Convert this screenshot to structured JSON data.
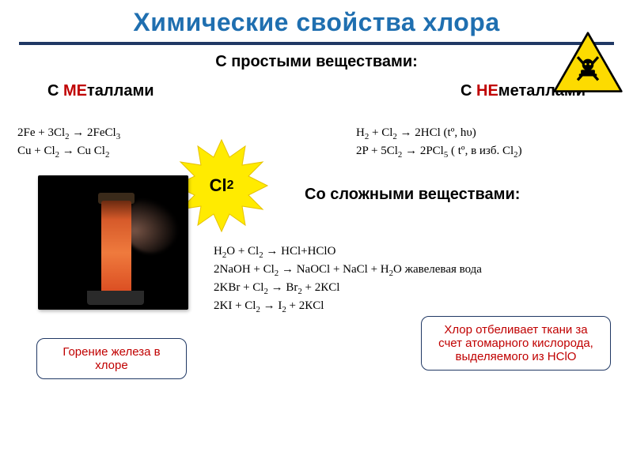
{
  "colors": {
    "title": "#1f6fb0",
    "underline": "#203864",
    "prefix": "#c00000",
    "callout_border": "#203864",
    "callout_text": "#c00000",
    "star_fill": "#ffeb00",
    "star_stroke": "#e6c200",
    "hazard_fill": "#fddb00",
    "hazard_stroke": "#000000"
  },
  "title": "Химические свойства хлора",
  "section_simple": "С простыми веществами:",
  "section_complex": "Со сложными веществами:",
  "cols": {
    "metals_prefix": "МЕ",
    "metals_rest": "таллами",
    "nonmetals_prefix": "НЕ",
    "nonmetals_rest": "металлами",
    "with": "С "
  },
  "eq_metals": [
    "2Fe + 3Cl<sub>2</sub>  →  2FeCl<sub>3</sub>",
    "Cu  +  Cl<sub>2</sub> → Cu Cl<sub>2</sub>"
  ],
  "eq_nonmetals": [
    "H<sub>2</sub> +   Cl<sub>2</sub>  → 2HCl  (tº, hυ)",
    "2P  +  5Cl<sub>2</sub> → 2PCl<sub>5</sub> ( tº,  в изб.  Cl<sub>2</sub>)"
  ],
  "starburst_label": "Cl",
  "starburst_sub": "2",
  "eq_complex": [
    "H<sub>2</sub>O  + Cl<sub>2</sub>    →  HCl+HClO",
    "2NaOH + Cl<sub>2</sub> →  NaOCl + NaCl + H<sub>2</sub>O жавелевая вода",
    "2KBr  +  Cl<sub>2</sub>    → Br<sub>2</sub> + 2КCl",
    "2KI    +  Cl<sub>2</sub>    →  I<sub>2</sub> +  2КCl"
  ],
  "callout1": "Горение железа в хлоре",
  "callout2": "Хлор отбеливает ткани за счет атомарного кислорода, выделяемого из HClO",
  "photo_alt": "iron-burning-in-chlorine"
}
